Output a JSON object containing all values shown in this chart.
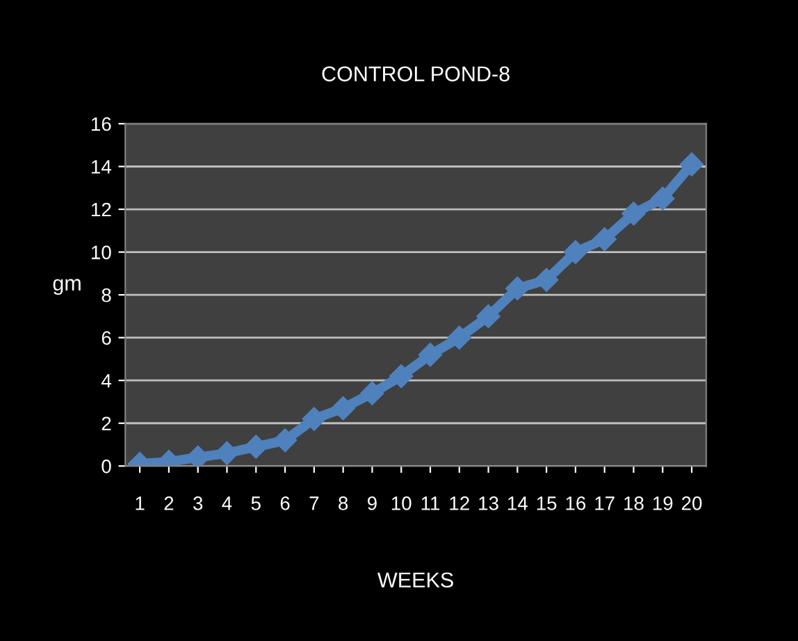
{
  "chart_data": {
    "type": "line",
    "title": "CONTROL POND-8",
    "xlabel": "WEEKS",
    "ylabel": "gm",
    "categories": [
      "1",
      "2",
      "3",
      "4",
      "5",
      "6",
      "7",
      "8",
      "9",
      "10",
      "11",
      "12",
      "13",
      "14",
      "15",
      "16",
      "17",
      "18",
      "19",
      "20"
    ],
    "series": [
      {
        "color": "#4f81bd",
        "values": [
          0.1,
          0.2,
          0.4,
          0.6,
          0.9,
          1.2,
          2.2,
          2.7,
          3.4,
          4.2,
          5.2,
          6.0,
          7.0,
          8.3,
          8.7,
          10.0,
          10.6,
          11.8,
          12.5,
          14.1
        ]
      }
    ],
    "ylim": [
      0,
      16
    ],
    "yticks": [
      0,
      2,
      4,
      6,
      8,
      10,
      12,
      14,
      16
    ],
    "grid": "y",
    "marker": "diamond",
    "line_style": "solid",
    "legend": false
  }
}
